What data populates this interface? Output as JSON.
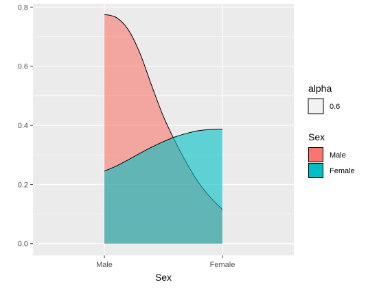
{
  "chart_data": {
    "type": "area",
    "title": "",
    "xlabel": "Sex",
    "ylabel": "",
    "categories": [
      "Male",
      "Female"
    ],
    "ylim": [
      -0.04,
      0.81
    ],
    "yticks": [
      0.0,
      0.2,
      0.4,
      0.6,
      0.8
    ],
    "ytick_labels": [
      "0.0",
      "0.2",
      "0.4",
      "0.6",
      "0.8"
    ],
    "grid": true,
    "panel_background": "#EBEBEB",
    "series": [
      {
        "name": "Male",
        "color": "#F8766D",
        "x": [
          1.0,
          1.1,
          1.2,
          1.3,
          1.4,
          1.5,
          1.6,
          1.7,
          1.8,
          1.9,
          2.0
        ],
        "y": [
          0.775,
          0.765,
          0.725,
          0.645,
          0.535,
          0.43,
          0.345,
          0.27,
          0.205,
          0.155,
          0.115
        ]
      },
      {
        "name": "Female",
        "color": "#00BFC4",
        "x": [
          1.0,
          1.1,
          1.2,
          1.3,
          1.4,
          1.5,
          1.6,
          1.7,
          1.8,
          1.9,
          2.0
        ],
        "y": [
          0.245,
          0.262,
          0.283,
          0.305,
          0.326,
          0.345,
          0.361,
          0.373,
          0.382,
          0.386,
          0.387
        ]
      }
    ],
    "legend": {
      "placement": "right",
      "groups": [
        {
          "title": "alpha",
          "entries": [
            {
              "label": "0.6",
              "color": "#F2F2F2"
            }
          ]
        },
        {
          "title": "Sex",
          "entries": [
            {
              "label": "Male",
              "color": "#F8766D"
            },
            {
              "label": "Female",
              "color": "#00BFC4"
            }
          ]
        }
      ]
    },
    "fill_alpha": 0.6
  }
}
